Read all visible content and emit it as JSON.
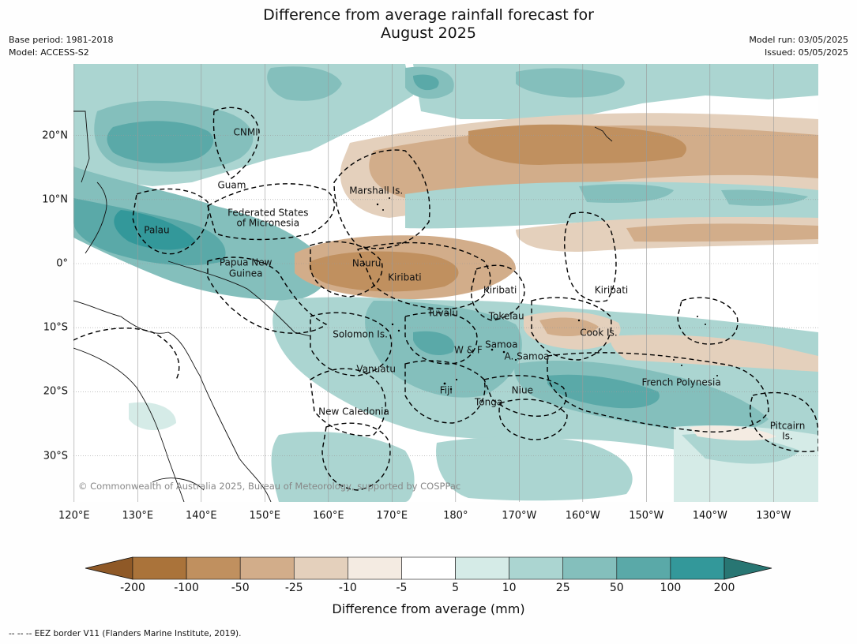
{
  "header": {
    "title_line1": "Difference from average rainfall forecast for",
    "title_line2": "August 2025",
    "base_period": "Base period: 1981-2018",
    "model": "Model: ACCESS-S2",
    "model_run": "Model run: 03/05/2025",
    "issued": "Issued: 05/05/2025"
  },
  "axes": {
    "lon_labels": [
      "120°E",
      "130°E",
      "140°E",
      "150°E",
      "160°E",
      "170°E",
      "180°",
      "170°W",
      "160°W",
      "150°W",
      "140°W",
      "130°W"
    ],
    "lat_labels": [
      "20°N",
      "10°N",
      "0°",
      "10°S",
      "20°S",
      "30°S"
    ]
  },
  "places": [
    {
      "name": "CNMI",
      "lon": 147,
      "lat": 20.5
    },
    {
      "name": "Guam",
      "lon": 144.8,
      "lat": 12.2
    },
    {
      "name": "Marshall Is.",
      "lon": 167.5,
      "lat": 11.3
    },
    {
      "name": "Federated States",
      "lon": 150.5,
      "lat": 7.9
    },
    {
      "name": "of Micronesia",
      "lon": 150.5,
      "lat": 6.3
    },
    {
      "name": "Palau",
      "lon": 133,
      "lat": 5.2
    },
    {
      "name": "Papua New",
      "lon": 147,
      "lat": 0.1
    },
    {
      "name": "Guinea",
      "lon": 147,
      "lat": -1.6
    },
    {
      "name": "Nauru",
      "lon": 166,
      "lat": 0
    },
    {
      "name": "Kiribati",
      "lon": 172,
      "lat": -2.2
    },
    {
      "name": "Kiribati",
      "lon": -173,
      "lat": -4.2
    },
    {
      "name": "Kiribati",
      "lon": -155.5,
      "lat": -4.2
    },
    {
      "name": "Tuvalu",
      "lon": 178,
      "lat": -7.8
    },
    {
      "name": "Tokelau",
      "lon": -172,
      "lat": -8.2
    },
    {
      "name": "Cook Is.",
      "lon": -157.5,
      "lat": -10.8
    },
    {
      "name": "Solomon Is.",
      "lon": 165,
      "lat": -11.1
    },
    {
      "name": "Samoa",
      "lon": -172.8,
      "lat": -12.7
    },
    {
      "name": "W & F",
      "lon": -178,
      "lat": -13.5
    },
    {
      "name": "A. Samoa",
      "lon": -168.8,
      "lat": -14.5
    },
    {
      "name": "Vanuatu",
      "lon": 167.5,
      "lat": -16.5
    },
    {
      "name": "Fiji",
      "lon": 178.5,
      "lat": -19.8
    },
    {
      "name": "Niue",
      "lon": -169.5,
      "lat": -19.8
    },
    {
      "name": "Tonga",
      "lon": -174.8,
      "lat": -21.7
    },
    {
      "name": "French Polynesia",
      "lon": -144.5,
      "lat": -18.6
    },
    {
      "name": "New Caledonia",
      "lon": 164,
      "lat": -23.1
    },
    {
      "name": "Pitcairn",
      "lon": -127.8,
      "lat": -25.4
    },
    {
      "name": "Is.",
      "lon": -127.8,
      "lat": -27
    }
  ],
  "colorbar": {
    "ticks": [
      "-200",
      "-100",
      "-50",
      "-25",
      "-10",
      "-5",
      "5",
      "10",
      "25",
      "50",
      "100",
      "200"
    ],
    "colors": [
      "#aa733a",
      "#c0905f",
      "#d2ad8a",
      "#e4d0bc",
      "#f4ebe2",
      "#ffffff",
      "#d5ebe7",
      "#abd5d1",
      "#84bfbc",
      "#5aa9a8",
      "#33989a"
    ],
    "low_extend_color": "#8f5927",
    "high_extend_color": "#287673",
    "title": "Difference from average (mm)"
  },
  "copyright": "© Commonwealth of Australia 2025, Bureau of Meteorology, supported by COSPPac",
  "footer": "--  --  -- EEZ border V11 (Flanders Marine Institute, 2019)."
}
